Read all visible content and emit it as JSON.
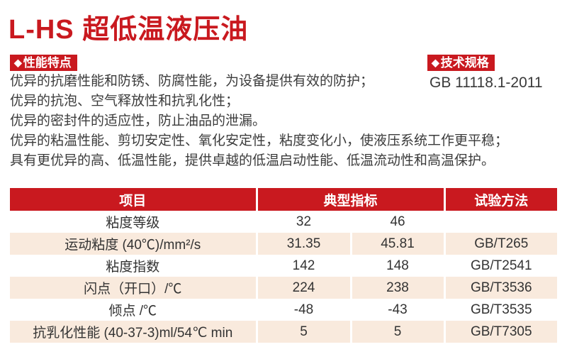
{
  "page": {
    "title": "L-HS 超低温液压油"
  },
  "icons": {
    "diamond": "◆"
  },
  "colors": {
    "accent_red": "#c9191f",
    "row_pink": "#f9eadd",
    "body_text": "#3b3b3b"
  },
  "sections": {
    "features_label": "性能特点",
    "specs_label": "技术规格"
  },
  "features": {
    "lines": [
      "优异的抗磨性能和防锈、防腐性能，为设备提供有效的防护；",
      "优异的抗泡、空气释放性和抗乳化性；",
      "优异的密封件的适应性，防止油品的泄漏。",
      "优异的粘温性能、剪切安定性、氧化安定性，粘度变化小，使液压系统工作更平稳；",
      "具有更优异的高、低温性能，提供卓越的低温启动性能、低温流动性和高温保护。"
    ]
  },
  "specs": {
    "standard": "GB 11118.1-2011"
  },
  "table": {
    "headers": {
      "item": "项目",
      "typical": "典型指标",
      "method": "试验方法"
    },
    "rows": [
      [
        "粘度等级",
        "32",
        "46",
        ""
      ],
      [
        "运动粘度 (40℃)/mm²/s",
        "31.35",
        "45.81",
        "GB/T265"
      ],
      [
        "粘度指数",
        "142",
        "148",
        "GB/T2541"
      ],
      [
        "闪点（开口）/℃",
        "224",
        "238",
        "GB/T3536"
      ],
      [
        "倾点 /℃",
        "-48",
        "-43",
        "GB/T3535"
      ],
      [
        "抗乳化性能 (40-37-3)ml/54℃ min",
        "5",
        "5",
        "GB/T7305"
      ]
    ]
  }
}
